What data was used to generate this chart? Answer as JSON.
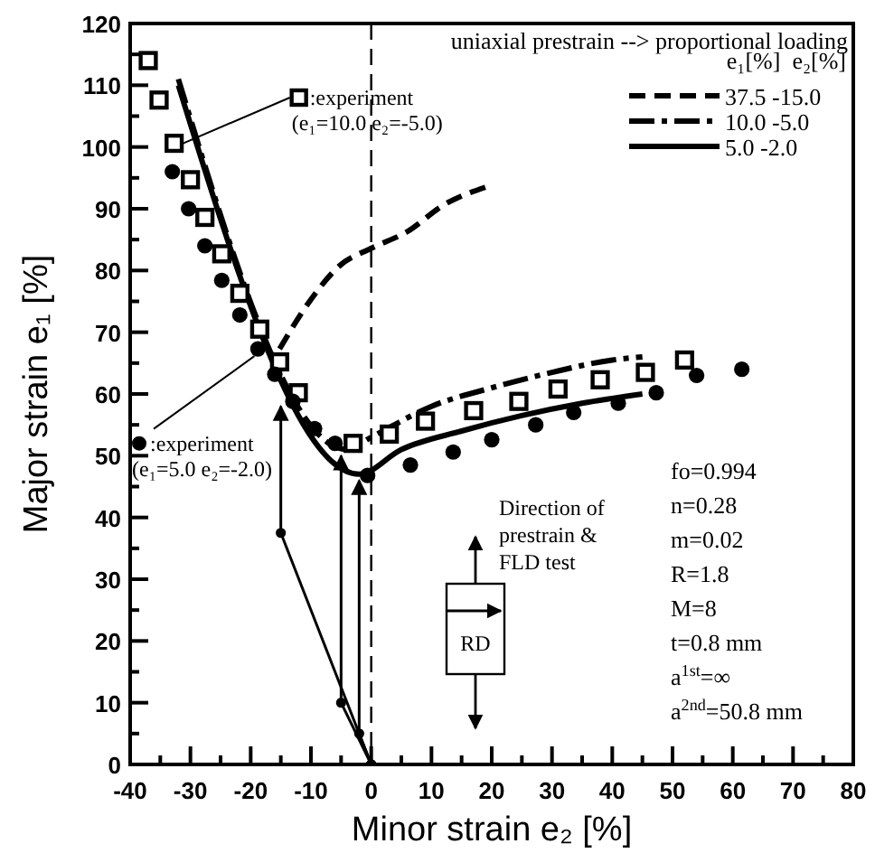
{
  "chart_data": {
    "type": "line",
    "xlabel": "Minor strain e₂ [%]",
    "ylabel": "Major strain e₁ [%]",
    "legend_title": "e₁[%]  e₂[%]",
    "legend": "top right",
    "grid": false,
    "xlim": [
      -40,
      80
    ],
    "ylim": [
      0,
      120
    ],
    "xticks": [
      -40,
      {
        "value": -35,
        "label": null
      },
      -30,
      {
        "value": -25,
        "label": null
      },
      -20,
      {
        "value": -15,
        "label": null
      },
      -10,
      {
        "value": -5,
        "label": null
      },
      0,
      {
        "value": 5,
        "label": null
      },
      10,
      {
        "value": 15,
        "label": null
      },
      20,
      {
        "value": 25,
        "label": null
      },
      30,
      {
        "value": 35,
        "label": null
      },
      40,
      {
        "value": 45,
        "label": null
      },
      50,
      {
        "value": 55,
        "label": null
      },
      60,
      {
        "value": 65,
        "label": null
      },
      70,
      {
        "value": 75,
        "label": null
      },
      80
    ],
    "yticks": [
      0,
      {
        "value": 5,
        "label": null
      },
      10,
      {
        "value": 15,
        "label": null
      },
      20,
      {
        "value": 25,
        "label": null
      },
      30,
      {
        "value": 35,
        "label": null
      },
      40,
      {
        "value": 45,
        "label": null
      },
      50,
      {
        "value": 55,
        "label": null
      },
      60,
      {
        "value": 65,
        "label": null
      },
      70,
      {
        "value": 75,
        "label": null
      },
      80,
      {
        "value": 85,
        "label": null
      },
      90,
      {
        "value": 95,
        "label": null
      },
      100,
      {
        "value": 105,
        "label": null
      },
      110,
      {
        "value": 115,
        "label": null
      },
      120
    ],
    "ref_lines": [
      {
        "axis": "x",
        "value": 0,
        "color": "#000000",
        "line_style": "dashed"
      }
    ],
    "series": [
      {
        "type": "scatter",
        "name": ":experiment (e₁=10.0 e₂=-5.0)",
        "color": "#000000",
        "marker": "square",
        "x": [
          -37,
          -35.2,
          -32.7,
          -30,
          -27.6,
          -24.8,
          -21.8,
          -18.5,
          -15.2,
          -12.1,
          -3,
          3,
          9,
          17,
          24.5,
          31,
          38,
          45.5,
          52
        ],
        "values": [
          114,
          107.6,
          100.6,
          94.7,
          88.6,
          82.7,
          76.3,
          70.5,
          65.2,
          60.2,
          52,
          53.5,
          55.6,
          57.3,
          58.8,
          60.8,
          62.3,
          63.5,
          65.5
        ]
      },
      {
        "type": "scatter",
        "name": ":experiment (e₁=5.0 e₂=-2.0)",
        "color": "#000000",
        "marker": "circle",
        "x": [
          -33,
          -30.3,
          -27.6,
          -24.8,
          -21.8,
          -18.8,
          -16,
          -13,
          -9.4,
          -6,
          -0.6,
          6.5,
          13.6,
          20,
          27.3,
          33.6,
          41,
          47.3,
          54,
          61.5
        ],
        "values": [
          96,
          90,
          84,
          78.4,
          72.8,
          67.3,
          63.2,
          58.8,
          54.4,
          52,
          46.8,
          48.5,
          50.6,
          52.6,
          55,
          57,
          58.5,
          60.2,
          63,
          64
        ]
      },
      {
        "name": "37.5 -15.0",
        "color": "#000000",
        "line_style": "dashed",
        "x": [
          -15.2,
          -10.3,
          -5.2,
          0,
          6,
          12,
          19
        ],
        "values": [
          67.3,
          74.9,
          80.8,
          83.6,
          86.3,
          90.6,
          93.5
        ]
      },
      {
        "name": "10.0 -5.0",
        "color": "#000000",
        "line_style": "dashdot",
        "x": [
          -32,
          -4,
          0,
          10,
          20,
          30,
          40,
          45
        ],
        "values": [
          111,
          51,
          53,
          58,
          61,
          63.5,
          65.5,
          66
        ]
      },
      {
        "name": "5.0 -2.0",
        "color": "#000000",
        "line_style": "solid",
        "x": [
          -32,
          -2,
          5,
          15,
          25,
          35,
          45
        ],
        "values": [
          110,
          47,
          51,
          54,
          56.5,
          58.5,
          60
        ]
      },
      {
        "type": "line",
        "color": "#000000",
        "line_style": "solid",
        "marker": "circle",
        "x": [
          0,
          -15,
          -15
        ],
        "values": [
          0,
          37.5,
          58
        ]
      },
      {
        "type": "line",
        "color": "#000000",
        "line_style": "solid",
        "marker": "circle",
        "x": [
          0,
          -5,
          -5
        ],
        "values": [
          0,
          10,
          50
        ]
      },
      {
        "type": "line",
        "color": "#000000",
        "line_style": "solid",
        "marker": "circle",
        "x": [
          0,
          -2,
          -2
        ],
        "values": [
          0,
          5,
          46
        ]
      }
    ],
    "annotations": [
      "uniaxial prestrain --> proportional loading",
      "Direction of prestrain & FLD test",
      "RD",
      "fo=0.994",
      "n=0.28",
      "m=0.02",
      "R=1.8",
      "M=8",
      "t=0.8 mm",
      "a$^{1st}$=∞",
      "a$^{2nd}$=50.8 mm"
    ]
  }
}
